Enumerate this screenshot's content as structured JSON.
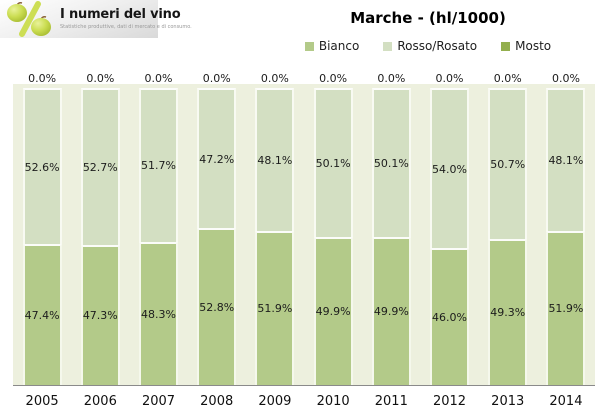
{
  "logo": {
    "title": "I numeri del vino",
    "subtitle": "Statistiche produttive, dati di mercato e di consumo."
  },
  "chart_data": {
    "type": "bar",
    "stacked": true,
    "percent_stacked": true,
    "title": "Marche - (hl/1000)",
    "categories": [
      "2005",
      "2006",
      "2007",
      "2008",
      "2009",
      "2010",
      "2011",
      "2012",
      "2013",
      "2014"
    ],
    "series": [
      {
        "name": "Bianco",
        "color": "#b3ca89",
        "values": [
          47.4,
          47.3,
          48.3,
          52.8,
          51.9,
          49.9,
          49.9,
          46.0,
          49.3,
          51.9
        ]
      },
      {
        "name": "Rosso/Rosato",
        "color": "#d3dfc2",
        "values": [
          52.6,
          52.7,
          51.7,
          47.2,
          48.1,
          50.1,
          50.1,
          54.0,
          50.7,
          48.1
        ]
      },
      {
        "name": "Mosto",
        "color": "#93af4e",
        "values": [
          0.0,
          0.0,
          0.0,
          0.0,
          0.0,
          0.0,
          0.0,
          0.0,
          0.0,
          0.0
        ]
      }
    ],
    "value_label_suffix": "%",
    "legend_position": "top",
    "plot_background": "#edf0de",
    "ylim": [
      0,
      100
    ],
    "grid": false
  }
}
